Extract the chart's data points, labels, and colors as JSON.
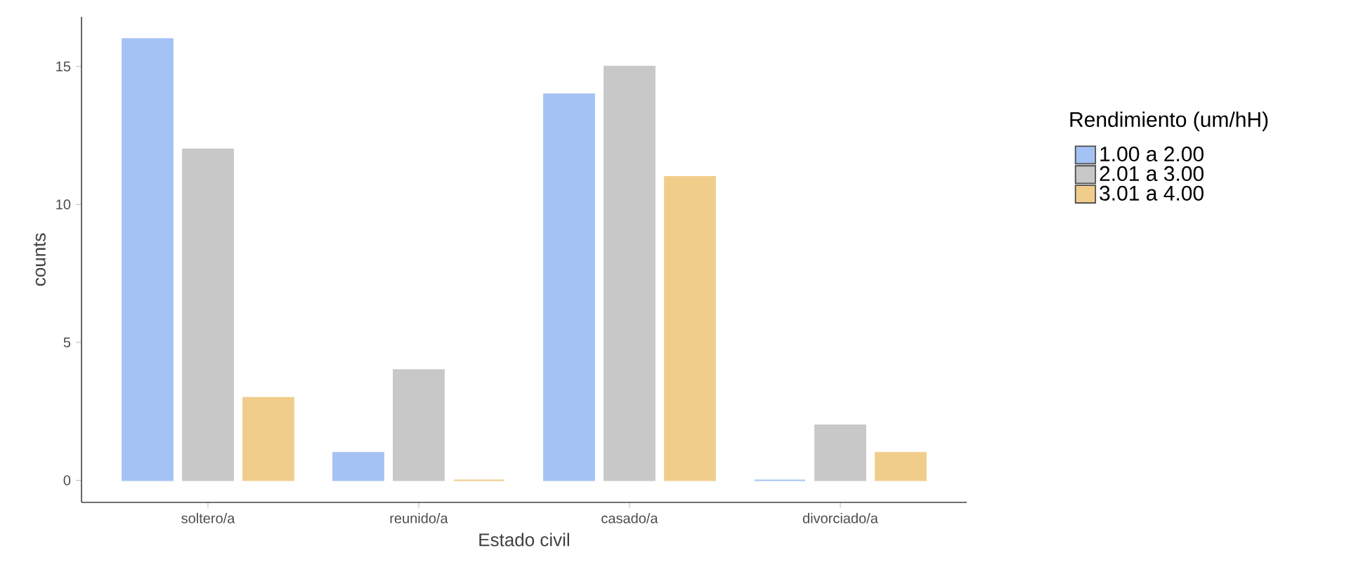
{
  "chart_data": {
    "type": "bar",
    "xlabel": "Estado civil",
    "ylabel": "counts",
    "legend_title": "Rendimiento (um/hH)",
    "categories": [
      "soltero/a",
      "reunido/a",
      "casado/a",
      "divorciado/a"
    ],
    "series": [
      {
        "name": "1.00 a 2.00",
        "color": "#a4c2f4",
        "values": [
          16,
          1,
          14,
          0
        ]
      },
      {
        "name": "2.01 a 3.00",
        "color": "#c8c8c8",
        "values": [
          12,
          4,
          15,
          2
        ]
      },
      {
        "name": "3.01 a 4.00",
        "color": "#f1cd8c",
        "values": [
          3,
          0,
          11,
          1
        ]
      }
    ],
    "ylim": [
      -0.8,
      16.8
    ],
    "yticks": [
      0,
      5,
      10,
      15
    ],
    "grid": false,
    "legend": "right"
  }
}
